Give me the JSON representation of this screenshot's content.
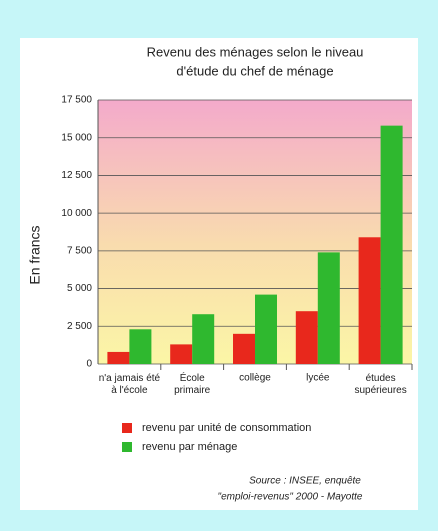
{
  "chart_data": {
    "type": "bar",
    "title": [
      "Revenu des ménages selon le niveau",
      "d'étude du chef de ménage"
    ],
    "y_label": "En francs",
    "categories": [
      "n'a jamais été\nà l'école",
      "École\nprimaire",
      "collège",
      "lycée",
      "études\nsupérieures"
    ],
    "series": [
      {
        "name": "revenu par unité de consommation",
        "color": "#e8281c",
        "values": [
          800,
          1300,
          2000,
          3500,
          8400
        ]
      },
      {
        "name": "revenu par ménage",
        "color": "#2fb82f",
        "values": [
          2300,
          3300,
          4600,
          7400,
          15800
        ]
      }
    ],
    "ylim": [
      0,
      17500
    ],
    "yticks": [
      0,
      {
        "value": 2500,
        "label": "2 500"
      },
      {
        "value": 5000,
        "label": "5 000"
      },
      {
        "value": 7500,
        "label": "7 500"
      },
      {
        "value": 10000,
        "label": "10 000"
      },
      {
        "value": 12500,
        "label": "12 500"
      },
      {
        "value": 15000,
        "label": "15 000"
      },
      {
        "value": 17500,
        "label": "17 500"
      }
    ],
    "grid": true,
    "source": [
      "Source : INSEE, enquête",
      "\"emploi-revenus\" 2000 - Mayotte"
    ]
  }
}
